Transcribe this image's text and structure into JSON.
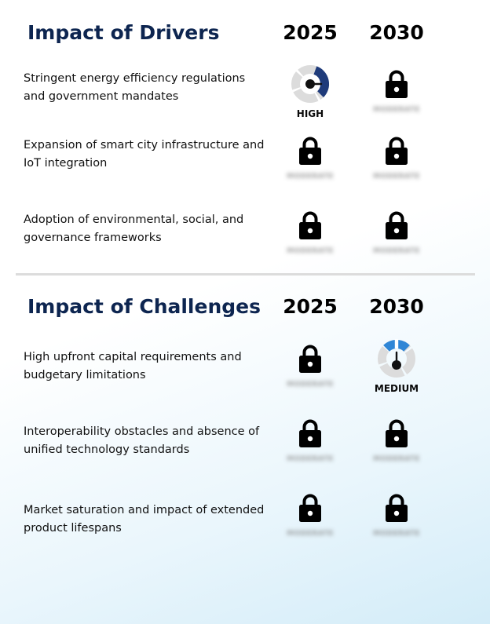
{
  "drivers": {
    "title": "Impact of Drivers",
    "years": [
      "2025",
      "2030"
    ],
    "rows": [
      {
        "label": "Stringent energy efficiency regulations and government mandates",
        "cells": [
          {
            "type": "gauge",
            "level": "high",
            "label": "HIGH",
            "color": "#1f3b7a"
          },
          {
            "type": "locked",
            "hidden_label": "MODERATE"
          }
        ]
      },
      {
        "label": "Expansion of smart city infrastructure and IoT integration",
        "cells": [
          {
            "type": "locked",
            "hidden_label": "MODERATE"
          },
          {
            "type": "locked",
            "hidden_label": "MODERATE"
          }
        ]
      },
      {
        "label": "Adoption of environmental, social, and governance frameworks",
        "cells": [
          {
            "type": "locked",
            "hidden_label": "MODERATE"
          },
          {
            "type": "locked",
            "hidden_label": "MODERATE"
          }
        ]
      }
    ]
  },
  "challenges": {
    "title": "Impact of Challenges",
    "years": [
      "2025",
      "2030"
    ],
    "rows": [
      {
        "label": "High upfront capital requirements and budgetary limitations",
        "cells": [
          {
            "type": "locked",
            "hidden_label": "MODERATE"
          },
          {
            "type": "gauge",
            "level": "medium",
            "label": "MEDIUM",
            "color": "#2f86d6"
          }
        ]
      },
      {
        "label": "Interoperability obstacles and absence of unified technology standards",
        "cells": [
          {
            "type": "locked",
            "hidden_label": "MODERATE"
          },
          {
            "type": "locked",
            "hidden_label": "MODERATE"
          }
        ]
      },
      {
        "label": "Market saturation and impact of extended product lifespans",
        "cells": [
          {
            "type": "locked",
            "hidden_label": "MODERATE"
          },
          {
            "type": "locked",
            "hidden_label": "MODERATE"
          }
        ]
      }
    ]
  },
  "colors": {
    "title": "#0d2550",
    "gauge_track": "#dcdcdc",
    "gauge_needle": "#111111",
    "lock": "#000000"
  }
}
